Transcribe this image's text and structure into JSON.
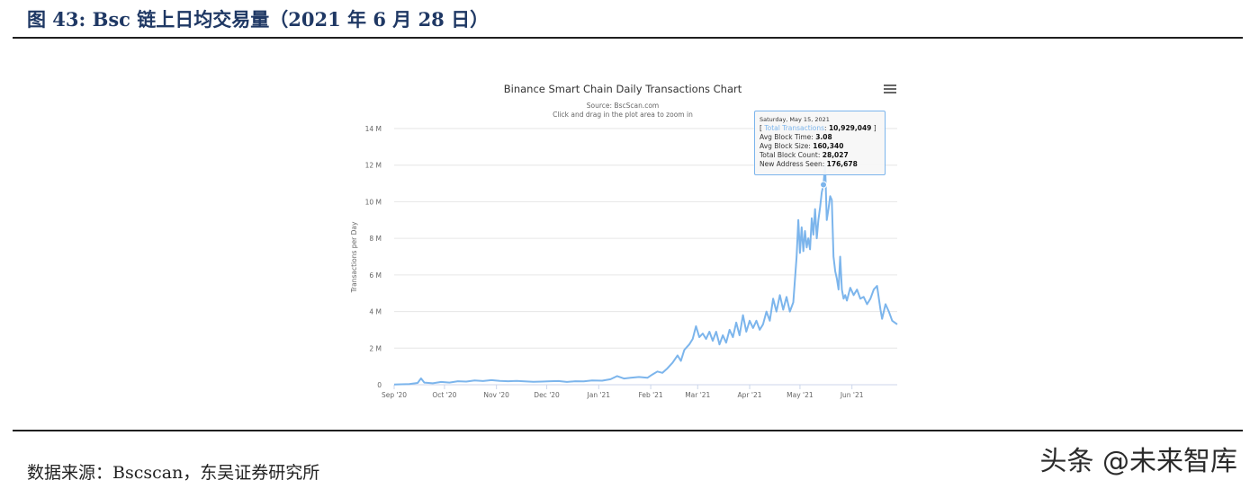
{
  "figure": {
    "title": "图 43:  Bsc 链上日均交易量（2021 年 6 月 28 日）",
    "source": "数据来源：Bscscan，东吴证券研究所",
    "watermark": "头条 @未来智库"
  },
  "tooltip": {
    "date": "Saturday, May 15, 2021",
    "series_prefix": "[ ",
    "series_label": "Total Transactions",
    "series_value": "10,929,049",
    "series_suffix": " ]",
    "rows": [
      {
        "label": "Avg Block Time: ",
        "value": "3.08"
      },
      {
        "label": "Avg Block Size: ",
        "value": "160,340"
      },
      {
        "label": "Total Block Count: ",
        "value": "28,027"
      },
      {
        "label": "New Address Seen: ",
        "value": "176,678"
      }
    ]
  },
  "colors": {
    "series": "#7cb5ec",
    "grid": "#e6e6e6",
    "text": "#333333",
    "accent": "#1f3864"
  },
  "chart_data": {
    "type": "line",
    "title": "Binance Smart Chain Daily Transactions Chart",
    "subtitle": "Source: BscScan.com",
    "subtitle2": "Click and drag in the plot area to zoom in",
    "ylabel": "Transactions per Day",
    "xlabel": "",
    "ylim": [
      0,
      14000000
    ],
    "yticks": [
      0,
      2000000,
      4000000,
      6000000,
      8000000,
      10000000,
      12000000,
      14000000
    ],
    "ytick_labels": [
      "0",
      "2 M",
      "4 M",
      "6 M",
      "8 M",
      "10 M",
      "12 M",
      "14 M"
    ],
    "xlim": [
      "2020-09-01",
      "2021-06-28"
    ],
    "xticks": [
      "2020-09-01",
      "2020-10-01",
      "2020-11-01",
      "2020-12-01",
      "2021-01-01",
      "2021-02-01",
      "2021-03-01",
      "2021-04-01",
      "2021-05-01",
      "2021-06-01"
    ],
    "xtick_labels": [
      "Sep '20",
      "Oct '20",
      "Nov '20",
      "Dec '20",
      "Jan '21",
      "Feb '21",
      "Mar '21",
      "Apr '21",
      "May '21",
      "Jun '21"
    ],
    "grid": true,
    "legend": "none",
    "series": [
      {
        "highlight": {
          "x": "2021-05-15",
          "y": 10929049
        },
        "points": [
          [
            "2020-09-01",
            10000
          ],
          [
            "2020-09-10",
            40000
          ],
          [
            "2020-09-15",
            100000
          ],
          [
            "2020-09-17",
            350000
          ],
          [
            "2020-09-19",
            120000
          ],
          [
            "2020-09-24",
            80000
          ],
          [
            "2020-09-29",
            150000
          ],
          [
            "2020-10-04",
            120000
          ],
          [
            "2020-10-09",
            190000
          ],
          [
            "2020-10-14",
            170000
          ],
          [
            "2020-10-19",
            230000
          ],
          [
            "2020-10-24",
            200000
          ],
          [
            "2020-10-29",
            250000
          ],
          [
            "2020-11-03",
            210000
          ],
          [
            "2020-11-08",
            190000
          ],
          [
            "2020-11-13",
            210000
          ],
          [
            "2020-11-18",
            180000
          ],
          [
            "2020-11-23",
            160000
          ],
          [
            "2020-11-28",
            170000
          ],
          [
            "2020-12-03",
            190000
          ],
          [
            "2020-12-08",
            200000
          ],
          [
            "2020-12-13",
            150000
          ],
          [
            "2020-12-18",
            190000
          ],
          [
            "2020-12-23",
            180000
          ],
          [
            "2020-12-28",
            230000
          ],
          [
            "2021-01-03",
            220000
          ],
          [
            "2021-01-08",
            300000
          ],
          [
            "2021-01-12",
            470000
          ],
          [
            "2021-01-16",
            340000
          ],
          [
            "2021-01-20",
            380000
          ],
          [
            "2021-01-25",
            420000
          ],
          [
            "2021-01-30",
            380000
          ],
          [
            "2021-02-02",
            560000
          ],
          [
            "2021-02-05",
            720000
          ],
          [
            "2021-02-08",
            650000
          ],
          [
            "2021-02-11",
            900000
          ],
          [
            "2021-02-14",
            1200000
          ],
          [
            "2021-02-17",
            1600000
          ],
          [
            "2021-02-19",
            1300000
          ],
          [
            "2021-02-21",
            1900000
          ],
          [
            "2021-02-24",
            2200000
          ],
          [
            "2021-02-26",
            2500000
          ],
          [
            "2021-02-28",
            3200000
          ],
          [
            "2021-03-02",
            2600000
          ],
          [
            "2021-03-04",
            2800000
          ],
          [
            "2021-03-06",
            2500000
          ],
          [
            "2021-03-08",
            2900000
          ],
          [
            "2021-03-10",
            2400000
          ],
          [
            "2021-03-12",
            2900000
          ],
          [
            "2021-03-14",
            2200000
          ],
          [
            "2021-03-16",
            2700000
          ],
          [
            "2021-03-18",
            2300000
          ],
          [
            "2021-03-20",
            3000000
          ],
          [
            "2021-03-22",
            2600000
          ],
          [
            "2021-03-24",
            3400000
          ],
          [
            "2021-03-26",
            2700000
          ],
          [
            "2021-03-28",
            3800000
          ],
          [
            "2021-03-30",
            2900000
          ],
          [
            "2021-04-01",
            3500000
          ],
          [
            "2021-04-03",
            3100000
          ],
          [
            "2021-04-05",
            3500000
          ],
          [
            "2021-04-07",
            3000000
          ],
          [
            "2021-04-09",
            3300000
          ],
          [
            "2021-04-11",
            4000000
          ],
          [
            "2021-04-13",
            3500000
          ],
          [
            "2021-04-15",
            4700000
          ],
          [
            "2021-04-17",
            4000000
          ],
          [
            "2021-04-19",
            4900000
          ],
          [
            "2021-04-21",
            4100000
          ],
          [
            "2021-04-23",
            4800000
          ],
          [
            "2021-04-25",
            4000000
          ],
          [
            "2021-04-27",
            4500000
          ],
          [
            "2021-04-29",
            7000000
          ],
          [
            "2021-04-30",
            9000000
          ],
          [
            "2021-05-01",
            7200000
          ],
          [
            "2021-05-02",
            8600000
          ],
          [
            "2021-05-03",
            7300000
          ],
          [
            "2021-05-04",
            8400000
          ],
          [
            "2021-05-05",
            7500000
          ],
          [
            "2021-05-06",
            8000000
          ],
          [
            "2021-05-07",
            7400000
          ],
          [
            "2021-05-08",
            9100000
          ],
          [
            "2021-05-09",
            8200000
          ],
          [
            "2021-05-10",
            9600000
          ],
          [
            "2021-05-11",
            8000000
          ],
          [
            "2021-05-12",
            9000000
          ],
          [
            "2021-05-13",
            9700000
          ],
          [
            "2021-05-14",
            10500000
          ],
          [
            "2021-05-15",
            10929049
          ],
          [
            "2021-05-16",
            12000000
          ],
          [
            "2021-05-17",
            9000000
          ],
          [
            "2021-05-18",
            9600000
          ],
          [
            "2021-05-19",
            10300000
          ],
          [
            "2021-05-20",
            10100000
          ],
          [
            "2021-05-21",
            7000000
          ],
          [
            "2021-05-22",
            6200000
          ],
          [
            "2021-05-23",
            5800000
          ],
          [
            "2021-05-24",
            5200000
          ],
          [
            "2021-05-25",
            7000000
          ],
          [
            "2021-05-26",
            5200000
          ],
          [
            "2021-05-27",
            4700000
          ],
          [
            "2021-05-28",
            4900000
          ],
          [
            "2021-05-29",
            4600000
          ],
          [
            "2021-05-31",
            5300000
          ],
          [
            "2021-06-02",
            4900000
          ],
          [
            "2021-06-04",
            5200000
          ],
          [
            "2021-06-06",
            4700000
          ],
          [
            "2021-06-08",
            4800000
          ],
          [
            "2021-06-10",
            4400000
          ],
          [
            "2021-06-12",
            4700000
          ],
          [
            "2021-06-14",
            5200000
          ],
          [
            "2021-06-16",
            5400000
          ],
          [
            "2021-06-18",
            4100000
          ],
          [
            "2021-06-19",
            3600000
          ],
          [
            "2021-06-21",
            4400000
          ],
          [
            "2021-06-23",
            4000000
          ],
          [
            "2021-06-25",
            3500000
          ],
          [
            "2021-06-28",
            3300000
          ]
        ]
      }
    ]
  }
}
